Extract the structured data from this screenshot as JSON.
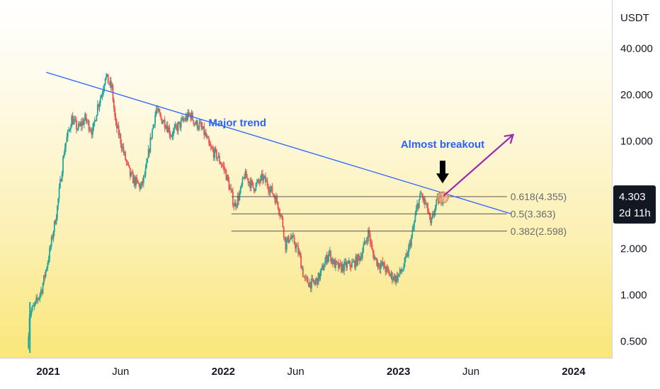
{
  "chart_data": {
    "type": "candlestick",
    "y_axis": {
      "unit_label": "USDT",
      "scale": "log",
      "ticks": [
        "40.000",
        "20.000",
        "10.000",
        "2.000",
        "1.000",
        "0.500"
      ],
      "tick_values": [
        40,
        20,
        10,
        2,
        1,
        0.5
      ],
      "range": [
        0.4,
        60
      ]
    },
    "x_axis": {
      "ticks": [
        {
          "label": "2021",
          "date": "2021-01-01",
          "bold": true
        },
        {
          "label": "Jun",
          "date": "2021-06-01",
          "bold": false
        },
        {
          "label": "2022",
          "date": "2022-01-01",
          "bold": true
        },
        {
          "label": "Jun",
          "date": "2022-06-01",
          "bold": false
        },
        {
          "label": "2023",
          "date": "2023-01-01",
          "bold": true
        },
        {
          "label": "Jun",
          "date": "2023-06-01",
          "bold": false
        },
        {
          "label": "2024",
          "date": "2024-01-01",
          "bold": true
        }
      ]
    },
    "price_path": [
      [
        "2020-11-20",
        0.45
      ],
      [
        "2020-11-24",
        0.75
      ],
      [
        "2020-12-05",
        0.85
      ],
      [
        "2020-12-20",
        1.1
      ],
      [
        "2021-01-05",
        1.9
      ],
      [
        "2021-01-20",
        3.5
      ],
      [
        "2021-02-05",
        9.0
      ],
      [
        "2021-02-20",
        14.0
      ],
      [
        "2021-03-05",
        12.0
      ],
      [
        "2021-03-20",
        14.0
      ],
      [
        "2021-04-05",
        11.5
      ],
      [
        "2021-04-15",
        17.0
      ],
      [
        "2021-04-25",
        21.0
      ],
      [
        "2021-05-01",
        27.0
      ],
      [
        "2021-05-08",
        24.0
      ],
      [
        "2021-05-15",
        22.0
      ],
      [
        "2021-05-22",
        13.0
      ],
      [
        "2021-05-30",
        11.0
      ],
      [
        "2021-06-10",
        8.0
      ],
      [
        "2021-06-22",
        6.0
      ],
      [
        "2021-07-01",
        5.5
      ],
      [
        "2021-07-15",
        5.0
      ],
      [
        "2021-07-25",
        6.5
      ],
      [
        "2021-08-05",
        11.0
      ],
      [
        "2021-08-15",
        16.0
      ],
      [
        "2021-08-25",
        14.0
      ],
      [
        "2021-09-05",
        13.0
      ],
      [
        "2021-09-15",
        11.0
      ],
      [
        "2021-09-25",
        12.0
      ],
      [
        "2021-10-10",
        13.5
      ],
      [
        "2021-10-25",
        15.0
      ],
      [
        "2021-11-05",
        13.0
      ],
      [
        "2021-11-15",
        12.5
      ],
      [
        "2021-11-25",
        11.0
      ],
      [
        "2021-12-05",
        9.0
      ],
      [
        "2021-12-20",
        8.0
      ],
      [
        "2022-01-05",
        6.5
      ],
      [
        "2022-01-15",
        5.0
      ],
      [
        "2022-01-25",
        3.8
      ],
      [
        "2022-02-05",
        4.5
      ],
      [
        "2022-02-15",
        6.0
      ],
      [
        "2022-02-25",
        5.5
      ],
      [
        "2022-03-05",
        5.0
      ],
      [
        "2022-03-15",
        5.3
      ],
      [
        "2022-03-25",
        5.8
      ],
      [
        "2022-04-05",
        5.2
      ],
      [
        "2022-04-15",
        4.6
      ],
      [
        "2022-04-25",
        4.0
      ],
      [
        "2022-05-05",
        3.0
      ],
      [
        "2022-05-12",
        2.1
      ],
      [
        "2022-05-20",
        2.4
      ],
      [
        "2022-05-30",
        2.2
      ],
      [
        "2022-06-10",
        1.8
      ],
      [
        "2022-06-20",
        1.25
      ],
      [
        "2022-07-01",
        1.2
      ],
      [
        "2022-07-10",
        1.18
      ],
      [
        "2022-07-20",
        1.3
      ],
      [
        "2022-08-01",
        1.6
      ],
      [
        "2022-08-10",
        1.9
      ],
      [
        "2022-08-20",
        1.6
      ],
      [
        "2022-09-01",
        1.5
      ],
      [
        "2022-09-15",
        1.55
      ],
      [
        "2022-10-01",
        1.6
      ],
      [
        "2022-10-15",
        1.8
      ],
      [
        "2022-10-25",
        2.2
      ],
      [
        "2022-11-01",
        2.6
      ],
      [
        "2022-11-08",
        1.9
      ],
      [
        "2022-11-20",
        1.6
      ],
      [
        "2022-12-01",
        1.55
      ],
      [
        "2022-12-15",
        1.35
      ],
      [
        "2022-12-28",
        1.28
      ],
      [
        "2023-01-10",
        1.45
      ],
      [
        "2023-01-20",
        1.8
      ],
      [
        "2023-02-01",
        2.6
      ],
      [
        "2023-02-10",
        3.8
      ],
      [
        "2023-02-18",
        4.5
      ],
      [
        "2023-02-25",
        4.0
      ],
      [
        "2023-03-05",
        3.5
      ],
      [
        "2023-03-10",
        2.8
      ],
      [
        "2023-03-18",
        3.6
      ],
      [
        "2023-03-25",
        4.1
      ],
      [
        "2023-04-03",
        4.3
      ]
    ],
    "trendline": {
      "label": "Major trend",
      "start": [
        "2020-12-28",
        28.0
      ],
      "end": [
        "2023-08-25",
        3.36
      ]
    },
    "fib_levels": [
      {
        "ratio": "0.618",
        "price": 4.355,
        "label": "0.618(4.355)"
      },
      {
        "ratio": "0.5",
        "price": 3.363,
        "label": "0.5(3.363)"
      },
      {
        "ratio": "0.382",
        "price": 2.598,
        "label": "0.382(2.598)"
      }
    ],
    "fib_range": {
      "start": "2022-01-18",
      "end": "2023-08-15"
    },
    "annotations": [
      {
        "label": "Almost breakout",
        "date": "2023-04-03",
        "price": 4.3
      }
    ],
    "projection_arrow": {
      "start": [
        "2023-04-05",
        4.4
      ],
      "end": [
        "2023-08-28",
        11.0
      ],
      "color": "#9c27b0"
    },
    "current_price": {
      "value": "4.303",
      "countdown": "2d 11h",
      "price": 4.303
    },
    "colors": {
      "up": "#26a69a",
      "down": "#ef5350",
      "trend": "#2962ff",
      "fib": "#555555",
      "arrow": "#9c27b0"
    }
  }
}
